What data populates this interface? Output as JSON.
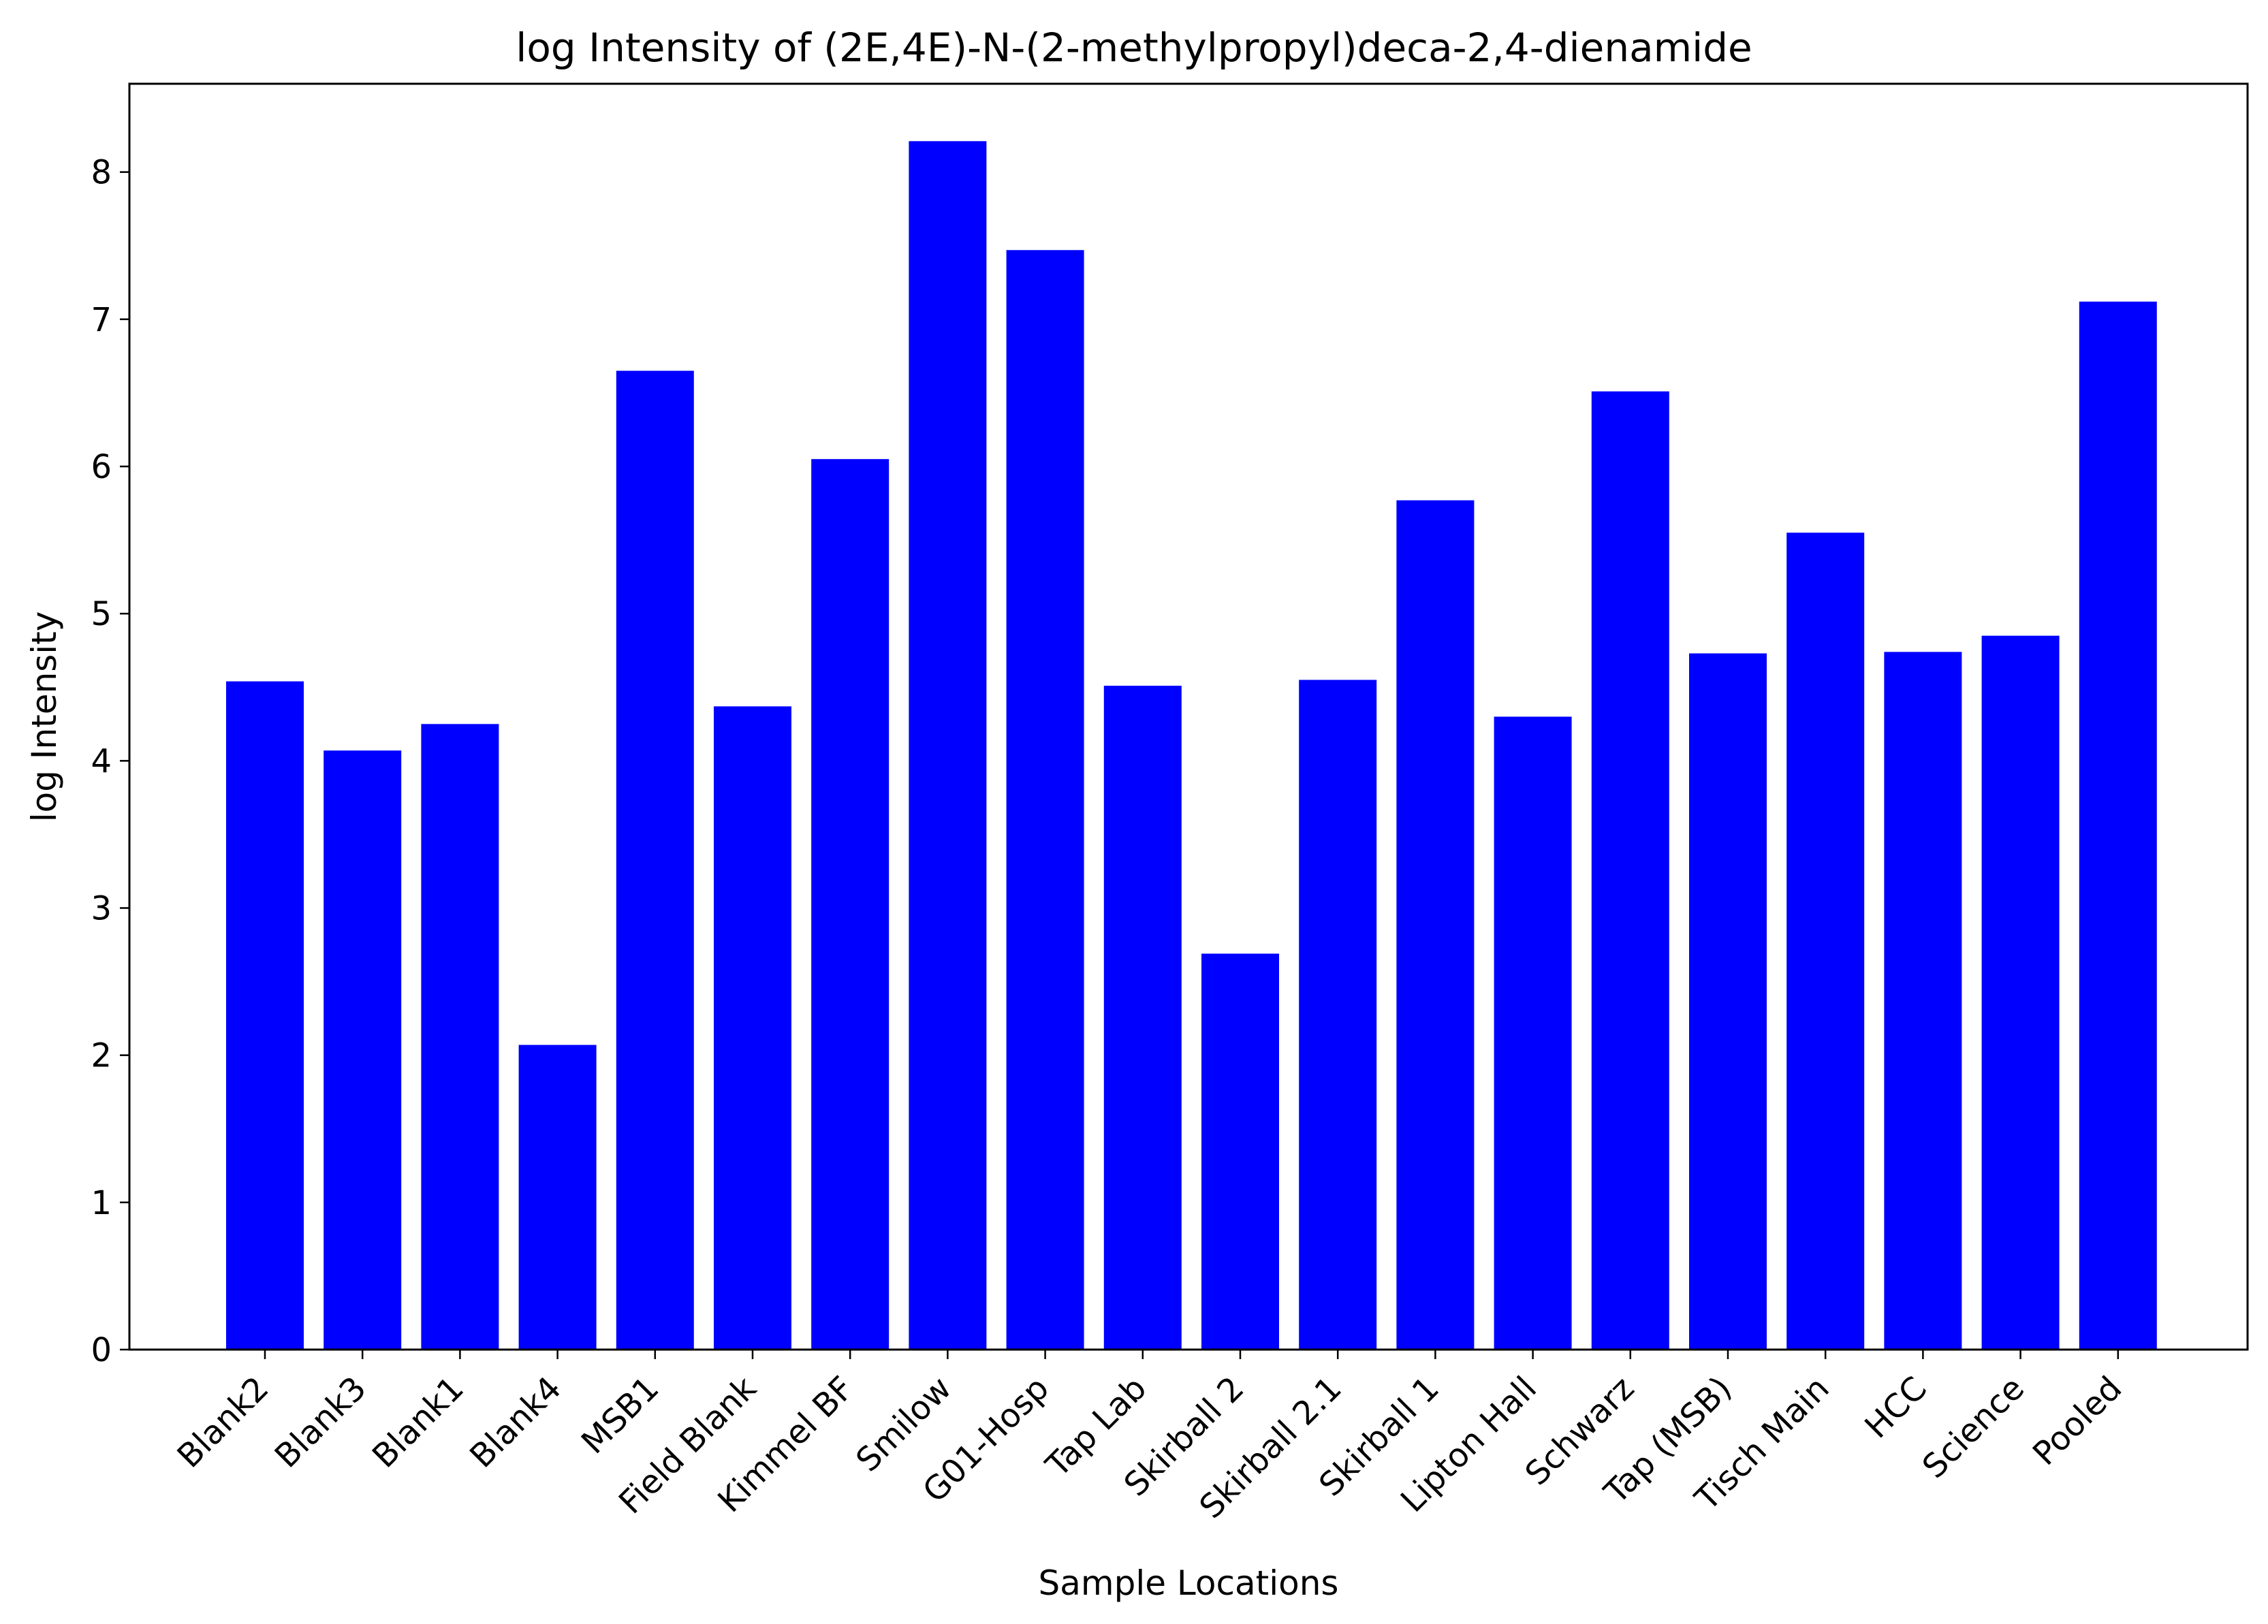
{
  "chart_data": {
    "type": "bar",
    "title": "log Intensity of (2E,4E)-N-(2-methylpropyl)deca-2,4-dienamide",
    "xlabel": "Sample Locations",
    "ylabel": "log Intensity",
    "categories": [
      "Blank2",
      "Blank3",
      "Blank1",
      "Blank4",
      "MSB1",
      "Field Blank",
      "Kimmel BF",
      "Smilow",
      "G01-Hosp",
      "Tap Lab",
      "Skirball 2",
      "Skirball 2.1",
      "Skirball 1",
      "Lipton Hall",
      "Schwarz",
      "Tap (MSB)",
      "Tisch Main",
      "HCC",
      "Science",
      "Pooled"
    ],
    "values": [
      4.54,
      4.07,
      4.25,
      2.07,
      6.65,
      4.37,
      6.05,
      8.21,
      7.47,
      4.51,
      2.69,
      4.55,
      5.77,
      4.3,
      6.51,
      4.73,
      5.55,
      4.74,
      4.85,
      7.12
    ],
    "ylim": [
      0,
      8.6
    ],
    "yticks": [
      0,
      1,
      2,
      3,
      4,
      5,
      6,
      7,
      8
    ],
    "bar_color": "#0000ff",
    "grid": false,
    "legend": false
  }
}
